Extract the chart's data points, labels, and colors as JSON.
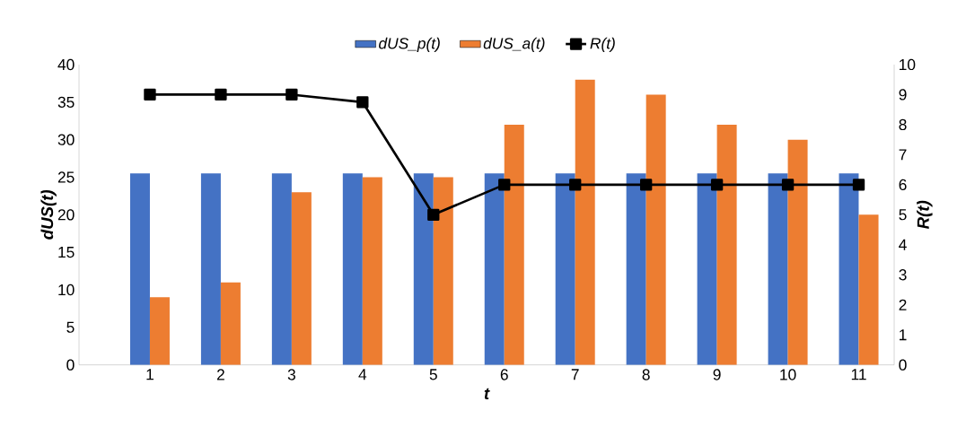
{
  "chart_data": {
    "type": "bar",
    "xlabel": "t",
    "ylabel": "dUS(t)",
    "y2label": "R(t)",
    "categories": [
      "1",
      "2",
      "3",
      "4",
      "5",
      "6",
      "7",
      "8",
      "9",
      "10",
      "11"
    ],
    "series": [
      {
        "name": "dUS_p(t)",
        "color": "#4472c4",
        "values": [
          25.5,
          25.5,
          25.5,
          25.5,
          25.5,
          25.5,
          25.5,
          25.5,
          25.5,
          25.5,
          25.5
        ]
      },
      {
        "name": "dUS_a(t)",
        "color": "#ed7d31",
        "values": [
          9,
          11,
          23,
          25,
          25,
          32,
          38,
          36,
          32,
          30,
          20
        ]
      },
      {
        "name": "R(t)",
        "type": "line",
        "axis": "y2",
        "color": "#000000",
        "marker": "square",
        "values": [
          9,
          9,
          9,
          8.75,
          5,
          6,
          6,
          6,
          6,
          6,
          6
        ]
      }
    ],
    "ylim": [
      0,
      40
    ],
    "yticks": [
      0,
      5,
      10,
      15,
      20,
      25,
      30,
      35,
      40
    ],
    "y2lim": [
      0,
      10
    ],
    "y2ticks": [
      0,
      1,
      2,
      3,
      4,
      5,
      6,
      7,
      8,
      9,
      10
    ],
    "legend": "top"
  }
}
